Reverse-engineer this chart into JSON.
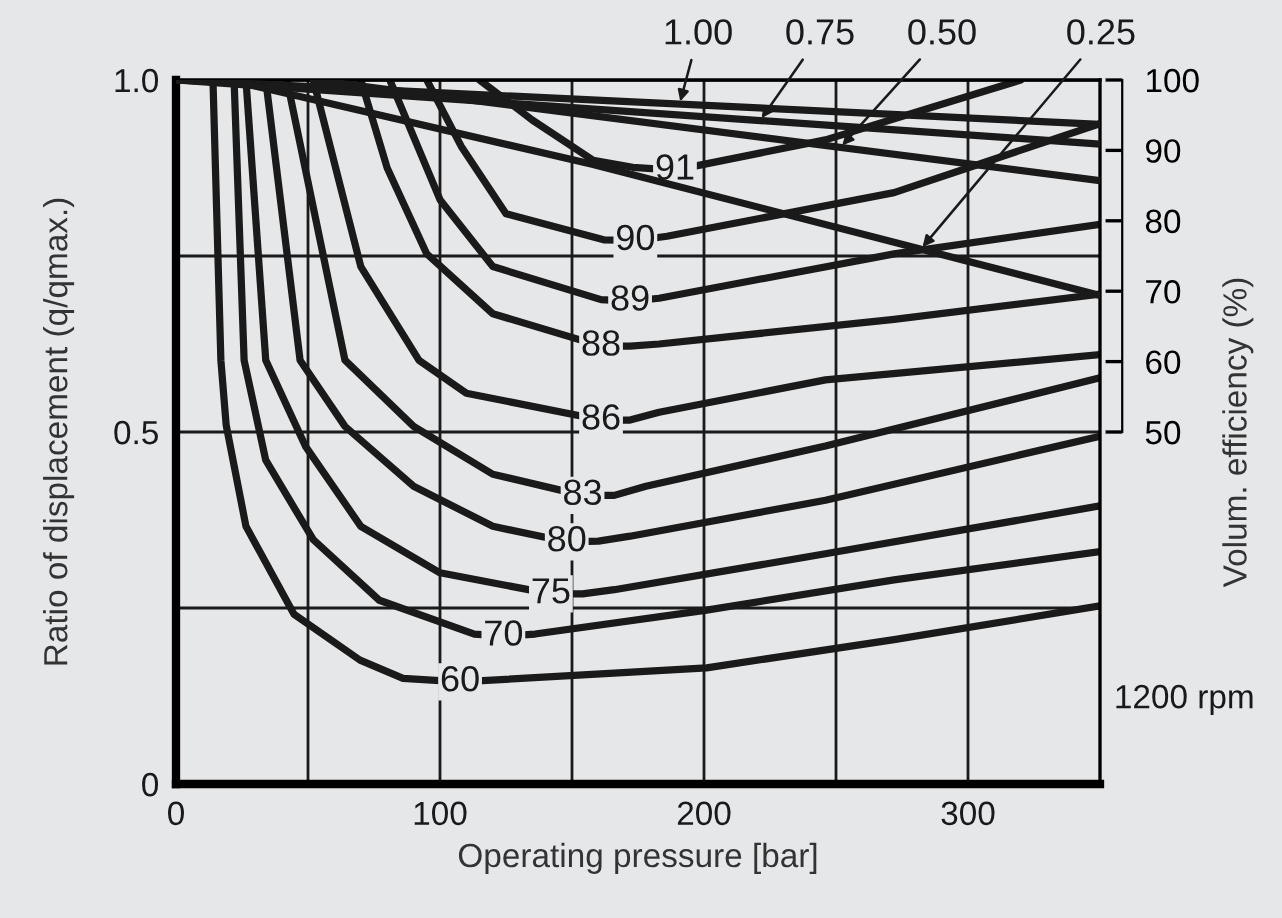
{
  "chart_data": {
    "type": "line",
    "xlabel": "Operating pressure [bar]",
    "ylabel": "Ratio of displacement (q/qmax.)",
    "y2label": "Volum. efficiency (%)",
    "xlim": [
      0,
      350
    ],
    "xticks": [
      0,
      {
        "value": 50,
        "label": null
      },
      100,
      {
        "value": 150,
        "label": null
      },
      200,
      {
        "value": 250,
        "label": null
      },
      300
    ],
    "ylim": [
      0,
      1
    ],
    "yticks": [
      0,
      {
        "value": 0.25,
        "label": null
      },
      {
        "value": 0.5,
        "label": "0.5"
      },
      {
        "value": 0.75,
        "label": null
      },
      {
        "value": 1,
        "label": "1.0"
      }
    ],
    "y2lim": [
      0,
      100
    ],
    "y2ticks": [
      50,
      60,
      70,
      80,
      90,
      100
    ],
    "grid": true,
    "line_style": "solid",
    "marker": "none",
    "annotations": [
      "1200 rpm"
    ],
    "series": [
      {
        "name": "60",
        "color": "#1a1a1a",
        "x": [
          14,
          17,
          19,
          26.5,
          44.7,
          69.7,
          86,
          107.6,
          201,
          272,
          350
        ],
        "values": [
          1.0,
          0.602,
          0.51,
          0.366,
          0.241,
          0.176,
          0.15,
          0.145,
          0.165,
          0.205,
          0.253
        ]
      },
      {
        "name": "70",
        "color": "#1a1a1a",
        "x": [
          22,
          25.8,
          34,
          52,
          77,
          113,
          124,
          136,
          201,
          272,
          350
        ],
        "values": [
          1.0,
          0.602,
          0.46,
          0.347,
          0.261,
          0.213,
          0.21,
          0.213,
          0.247,
          0.29,
          0.33
        ]
      },
      {
        "name": "75",
        "color": "#1a1a1a",
        "x": [
          26.5,
          34,
          49,
          70,
          100,
          142,
          154,
          166,
          246,
          350
        ],
        "values": [
          1.0,
          0.602,
          0.48,
          0.366,
          0.3,
          0.27,
          0.27,
          0.276,
          0.327,
          0.395
        ]
      },
      {
        "name": "80",
        "color": "#1a1a1a",
        "x": [
          34,
          47,
          64,
          90,
          120,
          148,
          160,
          172,
          246,
          350
        ],
        "values": [
          1.0,
          0.602,
          0.508,
          0.423,
          0.366,
          0.344,
          0.345,
          0.352,
          0.403,
          0.494
        ]
      },
      {
        "name": "83",
        "color": "#1a1a1a",
        "x": [
          42,
          64,
          90,
          120,
          154,
          166,
          178,
          246,
          350
        ],
        "values": [
          1.0,
          0.602,
          0.508,
          0.44,
          0.41,
          0.41,
          0.423,
          0.48,
          0.577
        ]
      },
      {
        "name": "86",
        "color": "#1a1a1a",
        "x": [
          52,
          70,
          92,
          110,
          161,
          172,
          183,
          246,
          350
        ],
        "values": [
          1.0,
          0.735,
          0.602,
          0.555,
          0.517,
          0.517,
          0.528,
          0.574,
          0.61
        ]
      },
      {
        "name": "88",
        "color": "#1a1a1a",
        "x": [
          70,
          80,
          95,
          120,
          161,
          172,
          183,
          272,
          350
        ],
        "values": [
          1.0,
          0.875,
          0.753,
          0.668,
          0.622,
          0.622,
          0.625,
          0.66,
          0.696
        ]
      },
      {
        "name": "89",
        "color": "#1a1a1a",
        "x": [
          81,
          100,
          120,
          161,
          172,
          183,
          272,
          350
        ],
        "values": [
          1.0,
          0.83,
          0.735,
          0.688,
          0.686,
          0.69,
          0.753,
          0.795
        ]
      },
      {
        "name": "90",
        "color": "#1a1a1a",
        "x": [
          95,
          108,
          125,
          162,
          174,
          186,
          272,
          350
        ],
        "values": [
          1.0,
          0.906,
          0.81,
          0.773,
          0.772,
          0.778,
          0.84,
          0.938
        ]
      },
      {
        "name": "91",
        "color": "#1a1a1a",
        "x": [
          115,
          135,
          158,
          173,
          189,
          246,
          320
        ],
        "values": [
          1.0,
          0.943,
          0.886,
          0.876,
          0.872,
          0.915,
          1.0
        ]
      },
      {
        "name": "1.00",
        "color": "#1a1a1a",
        "axis": "y2",
        "x": [
          0,
          350
        ],
        "values": [
          100,
          93.7
        ]
      },
      {
        "name": "0.75",
        "color": "#1a1a1a",
        "axis": "y2",
        "x": [
          0,
          350
        ],
        "values": [
          100,
          90.9
        ]
      },
      {
        "name": "0.50",
        "color": "#1a1a1a",
        "axis": "y2",
        "x": [
          52,
          350
        ],
        "values": [
          100,
          85.7
        ]
      },
      {
        "name": "0.25",
        "color": "#1a1a1a",
        "axis": "y2",
        "x": [
          20,
          158,
          350
        ],
        "values": [
          100,
          88,
          69.4
        ]
      }
    ]
  }
}
